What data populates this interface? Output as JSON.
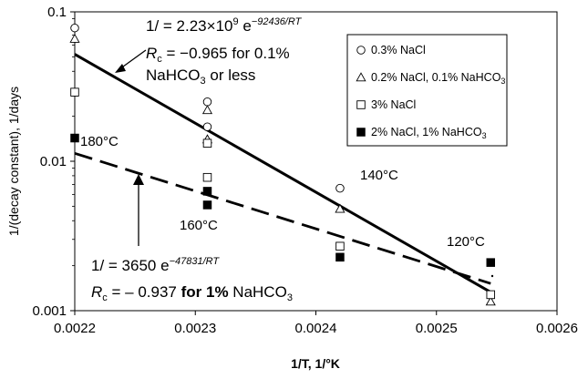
{
  "chart_data": {
    "type": "scatter",
    "xlabel": "1/T, 1/°K",
    "ylabel": "1/(decay constant), 1/days",
    "xlim": [
      0.0022,
      0.0026
    ],
    "ylim": [
      0.001,
      0.1
    ],
    "yscale": "log",
    "xticks": [
      "0.0022",
      "0.0023",
      "0.0024",
      "0.0025",
      "0.0026"
    ],
    "yticks": [
      "0.001",
      "0.01",
      "0.1"
    ],
    "grid": false,
    "legend_position": "top-right",
    "series": [
      {
        "name": "0.3% NaCl",
        "marker": "circle-open",
        "x": [
          0.0022,
          0.00231,
          0.00231,
          0.00242,
          0.002545
        ],
        "y": [
          0.078,
          0.025,
          0.017,
          0.0066,
          0.00127
        ]
      },
      {
        "name": "0.2% NaCl, 0.1% NaHCO3",
        "marker": "triangle-open",
        "x": [
          0.0022,
          0.00231,
          0.00231,
          0.00242,
          0.002545
        ],
        "y": [
          0.066,
          0.022,
          0.014,
          0.0048,
          0.00115
        ]
      },
      {
        "name": "3% NaCl",
        "marker": "square-open",
        "x": [
          0.0022,
          0.00231,
          0.00231,
          0.00242,
          0.002545
        ],
        "y": [
          0.029,
          0.0078,
          0.0132,
          0.0027,
          0.00128
        ]
      },
      {
        "name": "2% NaCl, 1% NaHCO3",
        "marker": "square-filled",
        "x": [
          0.0022,
          0.00231,
          0.00231,
          0.00242,
          0.002545
        ],
        "y": [
          0.0143,
          0.0063,
          0.0051,
          0.00228,
          0.0021
        ]
      }
    ],
    "fits": [
      {
        "style": "solid",
        "x": [
          0.0022,
          0.002545
        ],
        "y": [
          0.052,
          0.00133
        ]
      },
      {
        "style": "dashed",
        "x": [
          0.0022,
          0.002545
        ],
        "y": [
          0.0113,
          0.00152
        ]
      }
    ],
    "legend_labels": [
      {
        "marker": "circle-open",
        "text": "0.3% NaCl"
      },
      {
        "marker": "triangle-open",
        "text": "0.2% NaCl, 0.1% NaHCO",
        "sub": "3"
      },
      {
        "marker": "square-open",
        "text": "3% NaCl"
      },
      {
        "marker": "square-filled",
        "text": "2% NaCl, 1% NaHCO",
        "sub": "3"
      }
    ],
    "annotations": {
      "solid_fit": {
        "eq_prefix": "1/  = 2.23×10",
        "eq_exp": "9",
        "eq_e": " e",
        "eq_sup": "−92436/RT",
        "rc_r": "R",
        "rc_c": "c",
        "rc_rest": " = −0.965 for 0.1%",
        "rc_line2": "NaHCO",
        "rc_line2_sub": "3",
        "rc_line2_rest": " or less"
      },
      "dashed_fit": {
        "eq_prefix": "1/  = 3650 e",
        "eq_sup": "−47831/RT",
        "rc_r": "R",
        "rc_c": "c",
        "rc_rest": " = – 0.937 ",
        "rc_bold": "for 1%",
        "rc_tail": " NaHCO",
        "rc_tail_sub": "3"
      }
    },
    "temperature_labels": [
      "180°C",
      "160°C",
      "140°C",
      "120°C"
    ]
  }
}
